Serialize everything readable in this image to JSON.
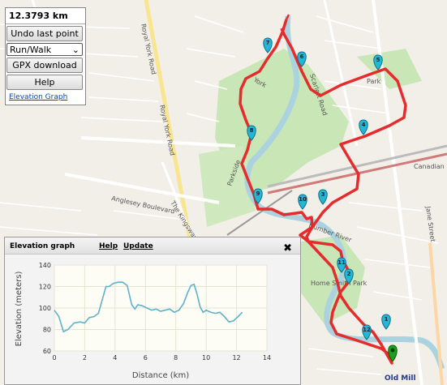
{
  "controls": {
    "distance": "12.3793 km",
    "undo_label": "Undo last point",
    "mode_value": "Run/Walk",
    "gpx_label": "GPX download",
    "help_label": "Help",
    "elevation_link": "Elevation Graph"
  },
  "map": {
    "street_labels": [
      "Royal York Road",
      "Royal York Road",
      "Anglesey Boulevard",
      "The Kingsway",
      "Jane Street",
      "Canadian",
      "York",
      "Scarlett Road",
      "Humber River",
      "Home Smith Park",
      "Old Mill",
      "Park",
      "Parkside"
    ],
    "markers": [
      "1",
      "2",
      "3",
      "4",
      "5",
      "6",
      "7",
      "8",
      "9",
      "10",
      "11",
      "12"
    ],
    "route_color": "#e52b2b",
    "water_color": "#aad3df",
    "park_color": "#c8e6b6"
  },
  "elevation_panel": {
    "title": "Elevation graph",
    "help_label": "Help",
    "update_label": "Update",
    "close_icon": "✖"
  },
  "chart_data": {
    "type": "line",
    "title": "",
    "xlabel": "Distance (km)",
    "ylabel": "Elevation (meters)",
    "xlim": [
      0,
      14
    ],
    "ylim": [
      60,
      140
    ],
    "xticks": [
      0,
      2,
      4,
      6,
      8,
      10,
      12,
      14
    ],
    "yticks": [
      60,
      80,
      100,
      120,
      140
    ],
    "series": [
      {
        "color": "#5fb0c9",
        "x": [
          0,
          0.3,
          0.6,
          0.9,
          1.3,
          1.7,
          2.0,
          2.3,
          2.6,
          2.9,
          3.2,
          3.4,
          3.6,
          3.9,
          4.2,
          4.5,
          4.8,
          5.1,
          5.3,
          5.5,
          5.8,
          6.1,
          6.4,
          6.7,
          7.0,
          7.3,
          7.6,
          7.9,
          8.2,
          8.5,
          8.8,
          9.0,
          9.2,
          9.4,
          9.6,
          9.8,
          10.0,
          10.3,
          10.6,
          10.9,
          11.2,
          11.5,
          11.8,
          12.1,
          12.38
        ],
        "y": [
          98,
          92,
          78,
          80,
          86,
          87,
          86,
          91,
          92,
          95,
          110,
          120,
          120,
          123,
          124,
          124,
          121,
          103,
          99,
          103,
          102,
          100,
          98,
          99,
          97,
          98,
          99,
          96,
          98,
          104,
          115,
          121,
          122,
          113,
          101,
          96,
          98,
          96,
          95,
          96,
          92,
          87,
          88,
          92,
          96
        ]
      }
    ]
  }
}
